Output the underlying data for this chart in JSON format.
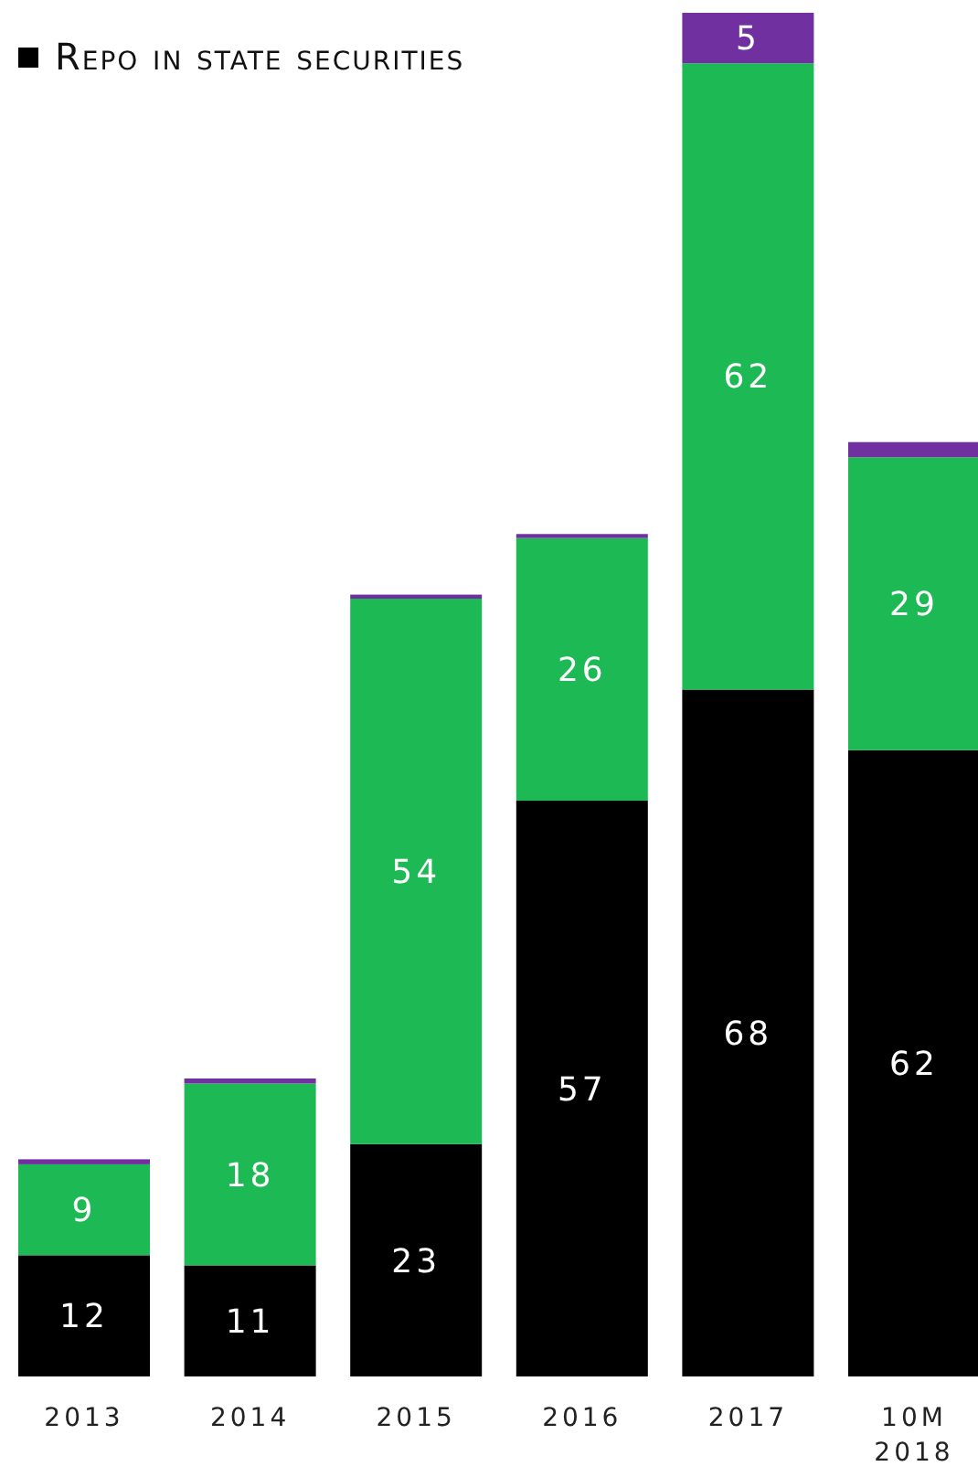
{
  "chart_data": {
    "type": "bar",
    "stacked": true,
    "legend": "top left",
    "categories": [
      "2013",
      "2014",
      "2015",
      "2016",
      "2017",
      "10M\n2018"
    ],
    "series": [
      {
        "name": "Repo in state securities",
        "color": "#000000",
        "values": [
          12,
          11,
          23,
          57,
          68,
          62
        ],
        "value_labels": [
          "12",
          "11",
          "23",
          "57",
          "68",
          "62"
        ]
      },
      {
        "color": "#1db954",
        "values": [
          9,
          18,
          54,
          26,
          62,
          29
        ],
        "value_labels": [
          "9",
          "18",
          "54",
          "26",
          "62",
          "29"
        ]
      },
      {
        "color": "#7030a0",
        "values": [
          0.5,
          0.5,
          0.4,
          0.4,
          5,
          1.5
        ],
        "value_labels": [
          null,
          null,
          null,
          null,
          "5",
          null
        ]
      }
    ]
  }
}
